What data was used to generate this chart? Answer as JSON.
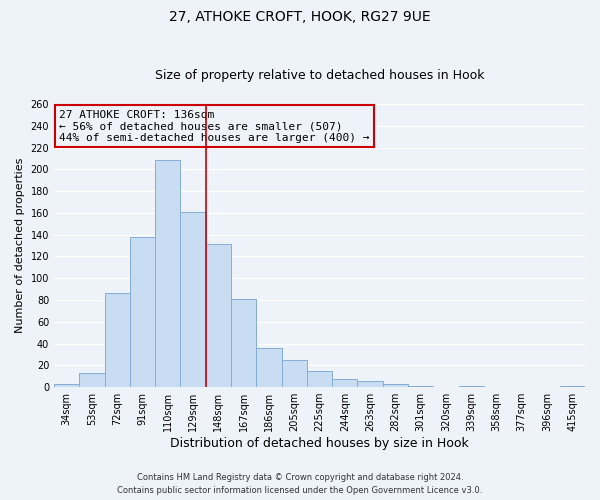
{
  "title": "27, ATHOKE CROFT, HOOK, RG27 9UE",
  "subtitle": "Size of property relative to detached houses in Hook",
  "xlabel": "Distribution of detached houses by size in Hook",
  "ylabel": "Number of detached properties",
  "bar_labels": [
    "34sqm",
    "53sqm",
    "72sqm",
    "91sqm",
    "110sqm",
    "129sqm",
    "148sqm",
    "167sqm",
    "186sqm",
    "205sqm",
    "225sqm",
    "244sqm",
    "263sqm",
    "282sqm",
    "301sqm",
    "320sqm",
    "339sqm",
    "358sqm",
    "377sqm",
    "396sqm",
    "415sqm"
  ],
  "bar_values": [
    3,
    13,
    86,
    138,
    209,
    161,
    131,
    81,
    36,
    25,
    15,
    7,
    6,
    3,
    1,
    0,
    1,
    0,
    0,
    0,
    1
  ],
  "bar_color": "#c9ddf2",
  "bar_edge_color": "#85aed4",
  "vline_x": 5.5,
  "vline_color": "#cc0000",
  "ylim": [
    0,
    260
  ],
  "yticks": [
    0,
    20,
    40,
    60,
    80,
    100,
    120,
    140,
    160,
    180,
    200,
    220,
    240,
    260
  ],
  "annotation_title": "27 ATHOKE CROFT: 136sqm",
  "annotation_line1": "← 56% of detached houses are smaller (507)",
  "annotation_line2": "44% of semi-detached houses are larger (400) →",
  "annotation_box_color": "#cc0000",
  "footer_line1": "Contains HM Land Registry data © Crown copyright and database right 2024.",
  "footer_line2": "Contains public sector information licensed under the Open Government Licence v3.0.",
  "bg_color": "#eef2f9",
  "grid_color": "#ffffff",
  "title_fontsize": 10,
  "subtitle_fontsize": 9,
  "ylabel_fontsize": 8,
  "xlabel_fontsize": 9,
  "tick_fontsize": 7,
  "annot_fontsize": 8,
  "footer_fontsize": 6
}
